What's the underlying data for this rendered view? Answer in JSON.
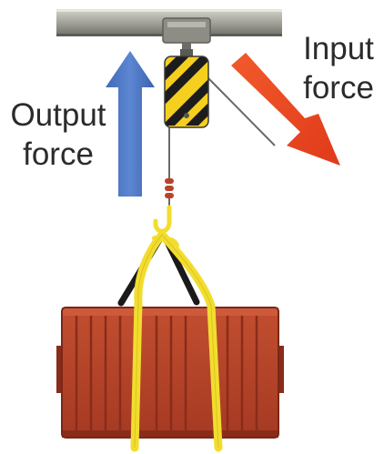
{
  "labels": {
    "output_force": [
      "Output",
      "force"
    ],
    "input_force": [
      "Input",
      "force"
    ]
  },
  "colors": {
    "output_arrow": "#4a76c6",
    "input_arrow": "#f04a24",
    "crate": "#b8432a",
    "crate_dark": "#8a2c1a",
    "straps": "#f2dd2e",
    "pulley_yellow": "#f5cf1d",
    "pulley_black": "#1c1c1c",
    "rail": "#9a9a92",
    "text": "#2b2b2b"
  },
  "icons": [
    "pulley-block-icon",
    "crane-hook-icon",
    "cargo-crate-icon"
  ]
}
